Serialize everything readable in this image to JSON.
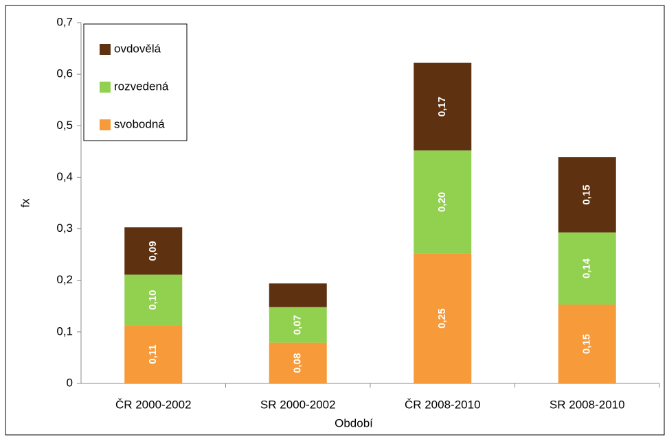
{
  "chart_data": {
    "type": "stacked_bar",
    "x_label": "Období",
    "y_label": "fx",
    "categories": [
      "ČR 2000-2002",
      "SR 2000-2002",
      "ČR 2008-2010",
      "SR 2008-2010"
    ],
    "series": [
      {
        "name": "svobodná",
        "color": "#f79a3a",
        "values": [
          0.113,
          0.079,
          0.252,
          0.153
        ],
        "value_labels": [
          "0,11",
          "0,08",
          "0,25",
          "0,15"
        ]
      },
      {
        "name": "rozvedená",
        "color": "#92d050",
        "values": [
          0.098,
          0.069,
          0.2,
          0.14
        ],
        "value_labels": [
          "0,10",
          "0,07",
          "0,20",
          "0,14"
        ]
      },
      {
        "name": "ovdovělá",
        "color": "#5e3210",
        "values": [
          0.092,
          0.046,
          0.17,
          0.146
        ],
        "value_labels": [
          "0,09",
          null,
          "0,17",
          "0,15"
        ]
      }
    ],
    "ylim": [
      0,
      0.7
    ],
    "yticks": [
      0,
      {
        "value": 0.1,
        "label": "0,1"
      },
      {
        "value": 0.2,
        "label": "0,2"
      },
      {
        "value": 0.3,
        "label": "0,3"
      },
      {
        "value": 0.4,
        "label": "0,4"
      },
      {
        "value": 0.5,
        "label": "0,5"
      },
      {
        "value": 0.6,
        "label": "0,6"
      },
      {
        "value": 0.7,
        "label": "0,7"
      }
    ],
    "legend": "upper left"
  }
}
